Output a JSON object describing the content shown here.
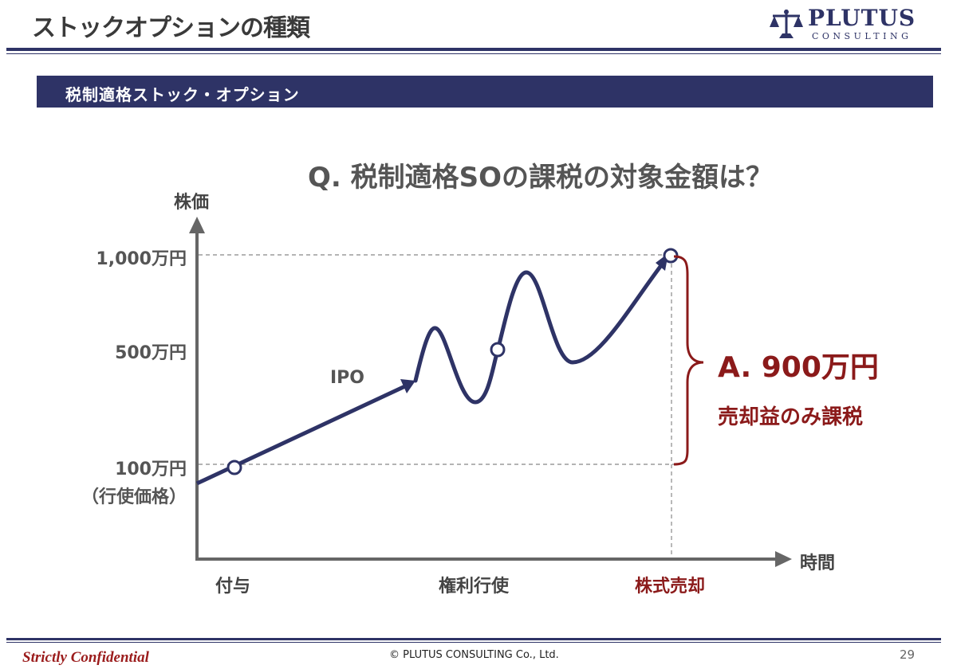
{
  "header": {
    "title": "ストックオプションの種類",
    "logo_name": "PLUTUS",
    "logo_sub": "CONSULTING",
    "accent_color": "#2e3366"
  },
  "section": {
    "title": "税制適格ストック・オプション"
  },
  "question": "Q. 税制適格SOの課税の対象金額は？",
  "chart": {
    "y_axis_label": "株価",
    "x_axis_label": "時間",
    "y_ticks": [
      {
        "label": "1,000万円",
        "value": 1000
      },
      {
        "label": "500万円",
        "value": 500
      },
      {
        "label": "100万円",
        "value": 100
      }
    ],
    "y_tick_note": "（行使価格）",
    "x_ticks": [
      {
        "label": "付与",
        "highlight": false
      },
      {
        "label": "権利行使",
        "highlight": false
      },
      {
        "label": "株式売却",
        "highlight": true
      }
    ],
    "ipo_label": "IPO",
    "line_color": "#2e3366",
    "highlight_color": "#8b1a1a",
    "points": [
      {
        "event": "付与",
        "price": 100
      },
      {
        "event": "権利行使",
        "price": 500
      },
      {
        "event": "株式売却",
        "price": 1000
      }
    ]
  },
  "answer": {
    "main": "A. 900万円",
    "sub": "売却益のみ課税"
  },
  "footer": {
    "confidential": "Strictly Confidential",
    "copyright": "© PLUTUS CONSULTING Co., Ltd.",
    "page_number": "29"
  }
}
